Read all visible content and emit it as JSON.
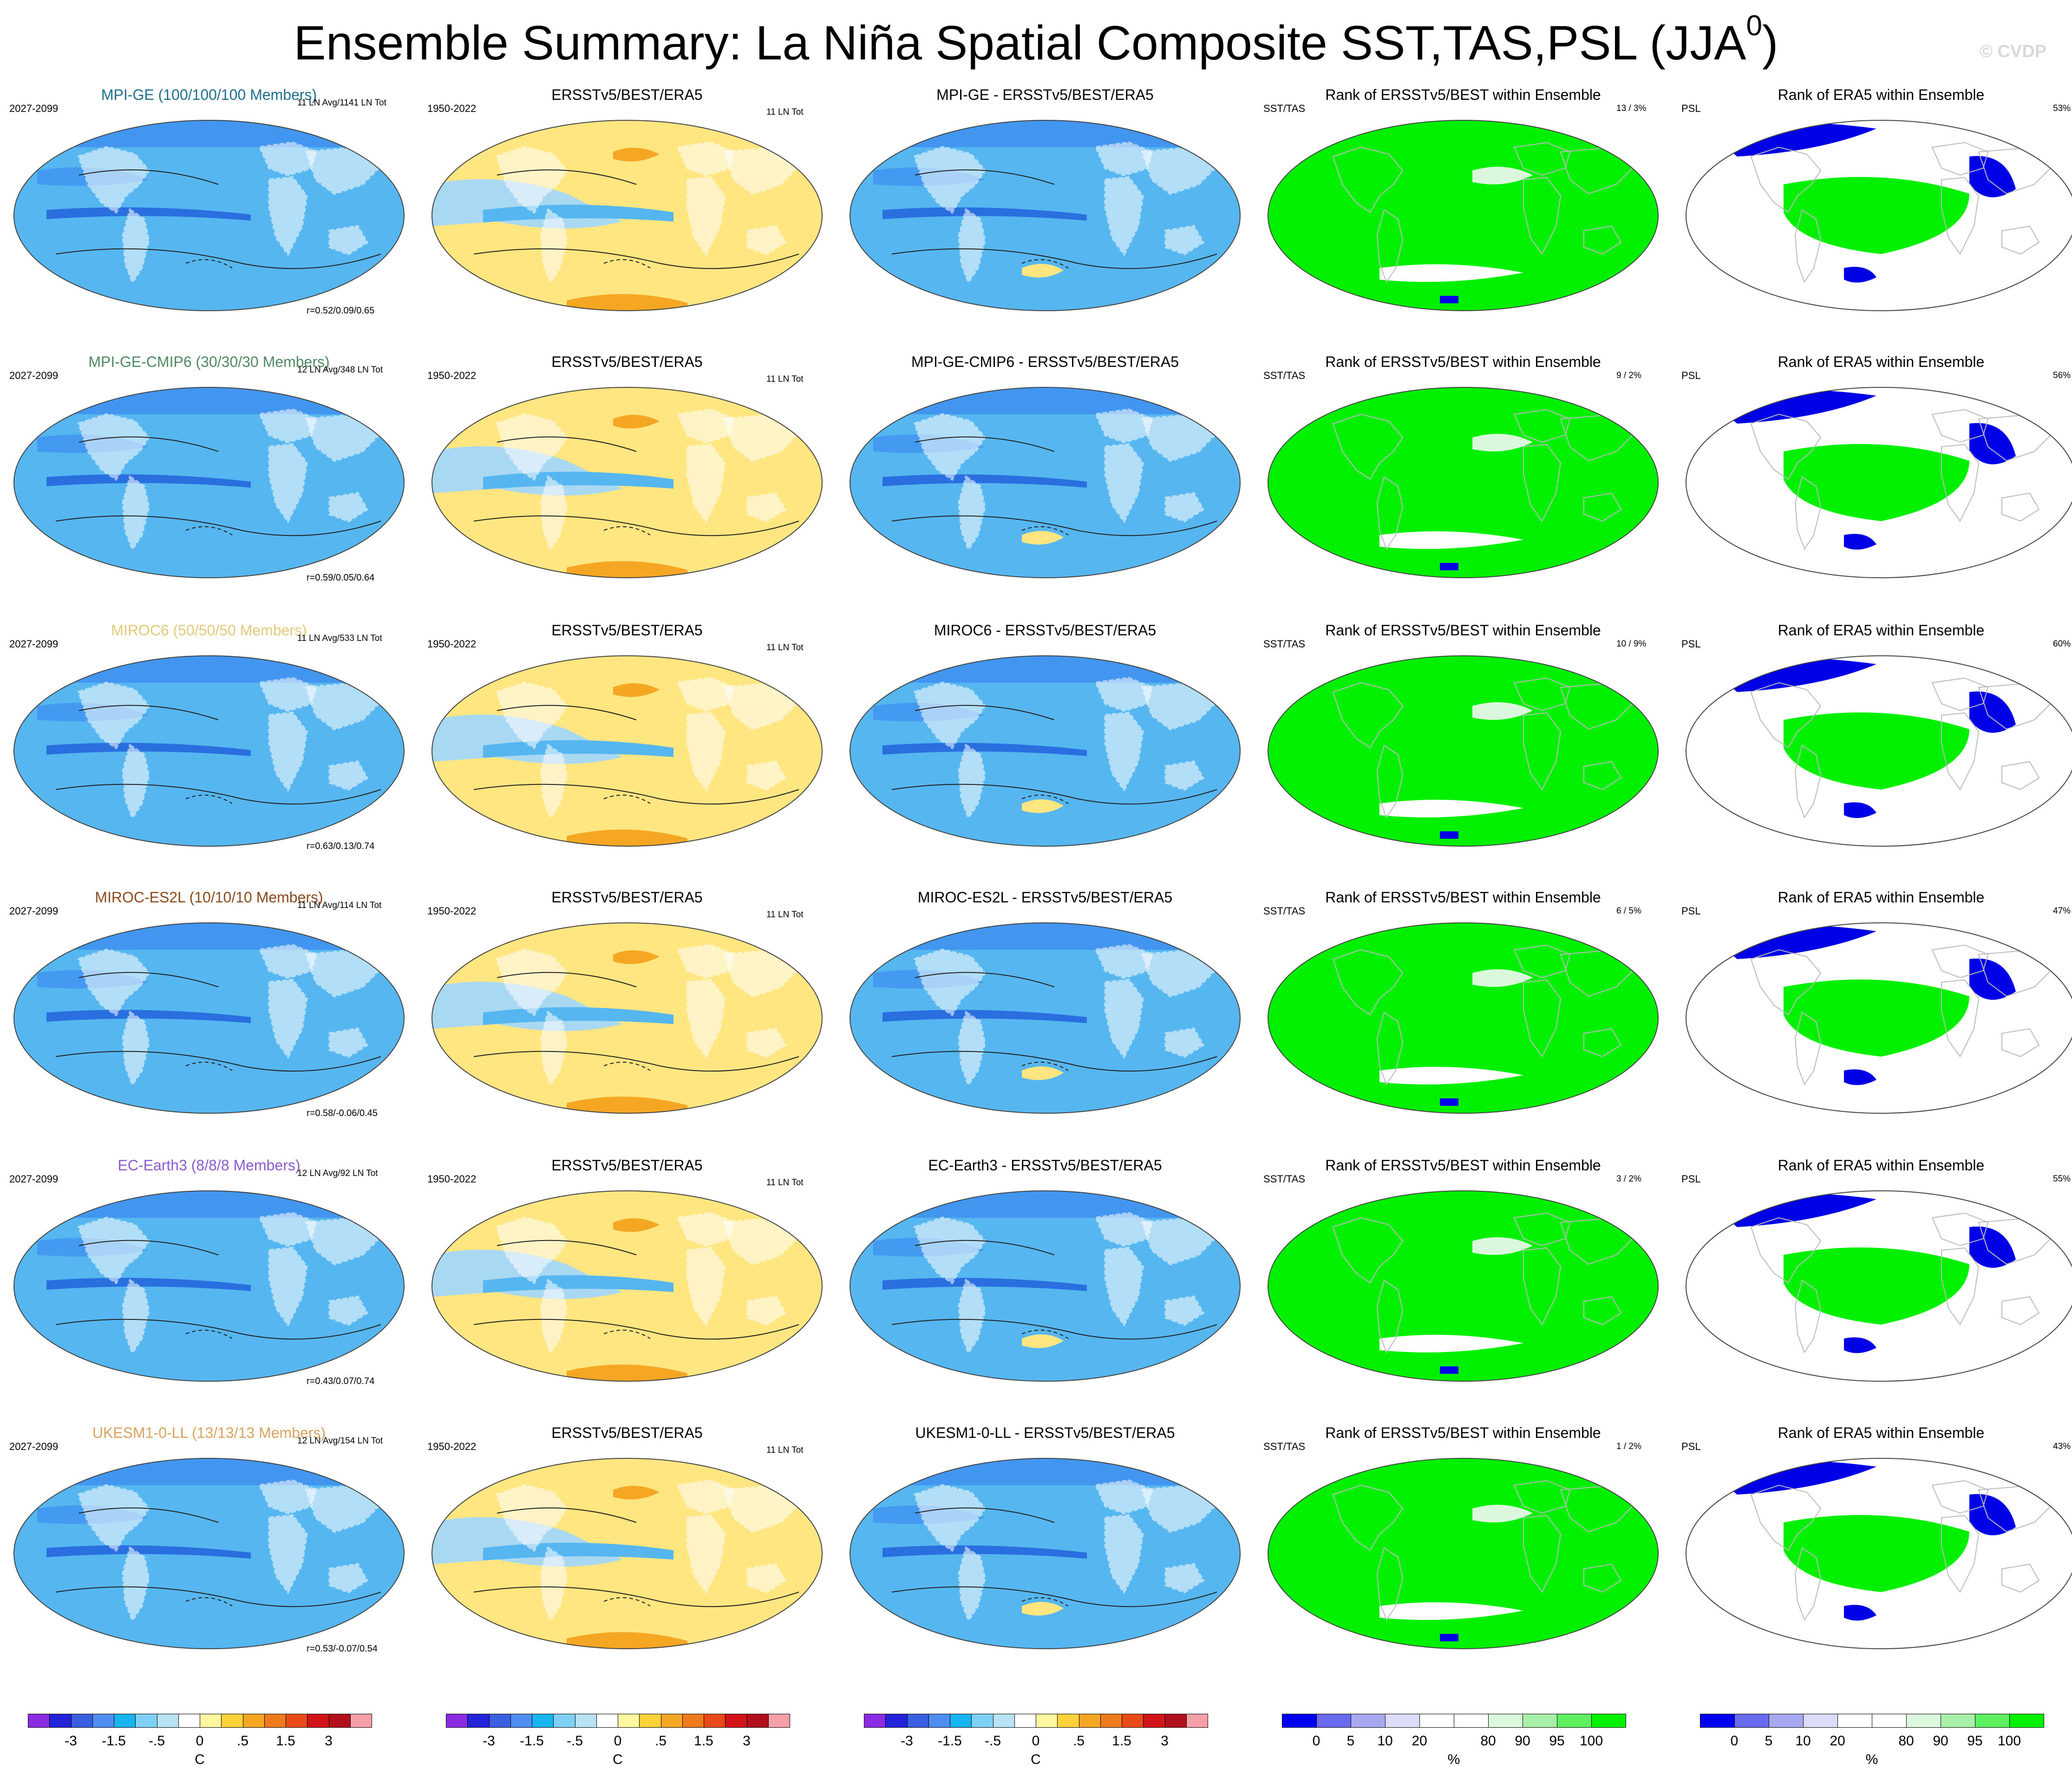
{
  "title": "Ensemble Summary: La Niña Spatial Composite SST,TAS,PSL (JJA",
  "title_sup": "0",
  "title_close": ")",
  "watermark": "© CVDP",
  "column_titles": {
    "obs": "ERSSTv5/BEST/ERA5",
    "rank_sst": "Rank of ERSSTv5/BEST within Ensemble",
    "rank_psl": "Rank of ERA5 within Ensemble"
  },
  "labels": {
    "model_period": "2027-2099",
    "obs_period": "1950-2022",
    "obs_count": "11 LN Tot",
    "sst_var": "SST/TAS",
    "psl_var": "PSL"
  },
  "rows": [
    {
      "model": "MPI-GE (100/100/100 Members)",
      "model_color": "#1f6f8b",
      "count": "11 LN Avg/1141 LN Tot",
      "r": "r=0.52/0.09/0.65",
      "diff": "MPI-GE - ERSSTv5/BEST/ERA5",
      "rank1": "13 /   3%",
      "rank2": "53%"
    },
    {
      "model": "MPI-GE-CMIP6 (30/30/30 Members)",
      "model_color": "#4f8a63",
      "count": "12 LN Avg/348 LN Tot",
      "r": "r=0.59/0.05/0.64",
      "diff": "MPI-GE-CMIP6 - ERSSTv5/BEST/ERA5",
      "rank1": "9 /   2%",
      "rank2": "56%"
    },
    {
      "model": "MIROC6 (50/50/50 Members)",
      "model_color": "#e3c97a",
      "count": "11 LN Avg/533 LN Tot",
      "r": "r=0.63/0.13/0.74",
      "diff": "MIROC6 - ERSSTv5/BEST/ERA5",
      "rank1": "10 /   9%",
      "rank2": "60%"
    },
    {
      "model": "MIROC-ES2L (10/10/10 Members)",
      "model_color": "#8a4a1c",
      "count": "11 LN Avg/114 LN Tot",
      "r": "r=0.58/-0.06/0.45",
      "diff": "MIROC-ES2L - ERSSTv5/BEST/ERA5",
      "rank1": "6 /   5%",
      "rank2": "47%"
    },
    {
      "model": "EC-Earth3 (8/8/8 Members)",
      "model_color": "#8a5ccf",
      "count": "12 LN Avg/92 LN Tot",
      "r": "r=0.43/0.07/0.74",
      "diff": "EC-Earth3 - ERSSTv5/BEST/ERA5",
      "rank1": "3 /   2%",
      "rank2": "55%"
    },
    {
      "model": "UKESM1-0-LL (13/13/13 Members)",
      "model_color": "#d9a35f",
      "count": "12 LN Avg/154 LN Tot",
      "r": "r=0.53/-0.07/0.54",
      "diff": "UKESM1-0-LL - ERSSTv5/BEST/ERA5",
      "rank1": "1 /   2%",
      "rank2": "43%"
    }
  ],
  "colorbars": {
    "temp": {
      "colors": [
        "#8a2be2",
        "#2323d9",
        "#3a5fe0",
        "#4f8ef0",
        "#18b4f0",
        "#7fd0f5",
        "#b9e3f5",
        "#ffffff",
        "#fff7a0",
        "#ffd23a",
        "#f5a623",
        "#f07b1e",
        "#e84a1a",
        "#d2141a",
        "#b0101c",
        "#f5a0a8"
      ],
      "labels": [
        "-3",
        "-1.5",
        "-.5",
        "0",
        ".5",
        "1.5",
        "3"
      ],
      "unit": "C"
    },
    "rank": {
      "colors": [
        "#0000f0",
        "#6a6af0",
        "#a8a8f0",
        "#dcdcf8",
        "#ffffff",
        "#ffffff",
        "#dcf8dc",
        "#a8f0a8",
        "#5ef05e",
        "#00f000"
      ],
      "labels": [
        "0",
        "5",
        "10",
        "20",
        "80",
        "90",
        "95",
        "100"
      ],
      "unit": "%"
    }
  },
  "palette": {
    "ocean_model": "#56b6f0",
    "ocean_dark": "#2a6fe0",
    "ocean_mid": "#3d8ff0",
    "obs_warm": "#ffe680",
    "obs_orange": "#f5a623",
    "obs_cool": "#a9d8f2",
    "rank_green": "#00f000",
    "rank_blue": "#0000e6",
    "rank_light": "#dcf8dc"
  }
}
